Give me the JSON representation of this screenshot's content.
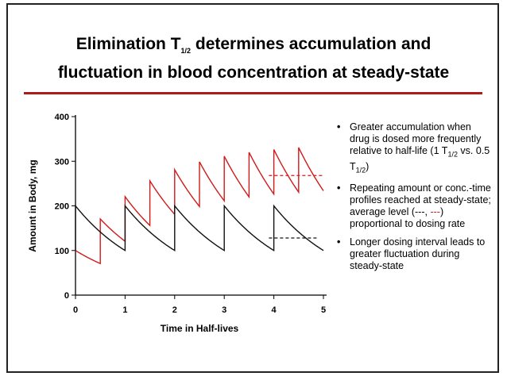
{
  "slide": {
    "title_line1_a": "Elimination T",
    "title_sub": "1/2",
    "title_line1_b": " determines accumulation and",
    "title_line2": "fluctuation in blood concentration at steady-state"
  },
  "bullets": [
    {
      "parts": [
        "Greater accumulation when drug is dosed more frequently relative to half-life (1 T",
        "1/2",
        " vs. 0.5 T",
        "1/2",
        ")"
      ]
    },
    {
      "parts": [
        "Repeating amount or conc.-time profiles reached at steady-state; average level (---, ",
        "---",
        ") proportional to dosing rate"
      ]
    },
    {
      "parts": [
        "Longer dosing interval leads to greater fluctuation during steady-state"
      ]
    }
  ],
  "colors": {
    "red_series": "#d11a1a",
    "black_series": "#111111",
    "title_rule": "#b01a1a"
  },
  "chart_data": {
    "type": "line",
    "xlabel": "Time in Half-lives",
    "ylabel": "Amount in Body, mg",
    "xlim": [
      0,
      5
    ],
    "ylim": [
      0,
      400
    ],
    "xticks": [
      "0",
      "1",
      "2",
      "3",
      "4",
      "5"
    ],
    "yticks": [
      "0",
      "100",
      "200",
      "300",
      "400"
    ],
    "grid": false,
    "series": [
      {
        "color": "#d11a1a",
        "dose_mg": 100,
        "dosing_interval_half_lives": 0.5,
        "first_dose_at": 0.5,
        "start_level_mg": 100,
        "average_level_mg": 268,
        "average_line_x": [
          3.9,
          5.0
        ]
      },
      {
        "color": "#111111",
        "dose_mg": 100,
        "dosing_interval_half_lives": 1,
        "first_dose_at": 0,
        "start_level_mg": 100,
        "average_level_mg": 128,
        "average_line_x": [
          3.9,
          4.9
        ]
      }
    ]
  }
}
